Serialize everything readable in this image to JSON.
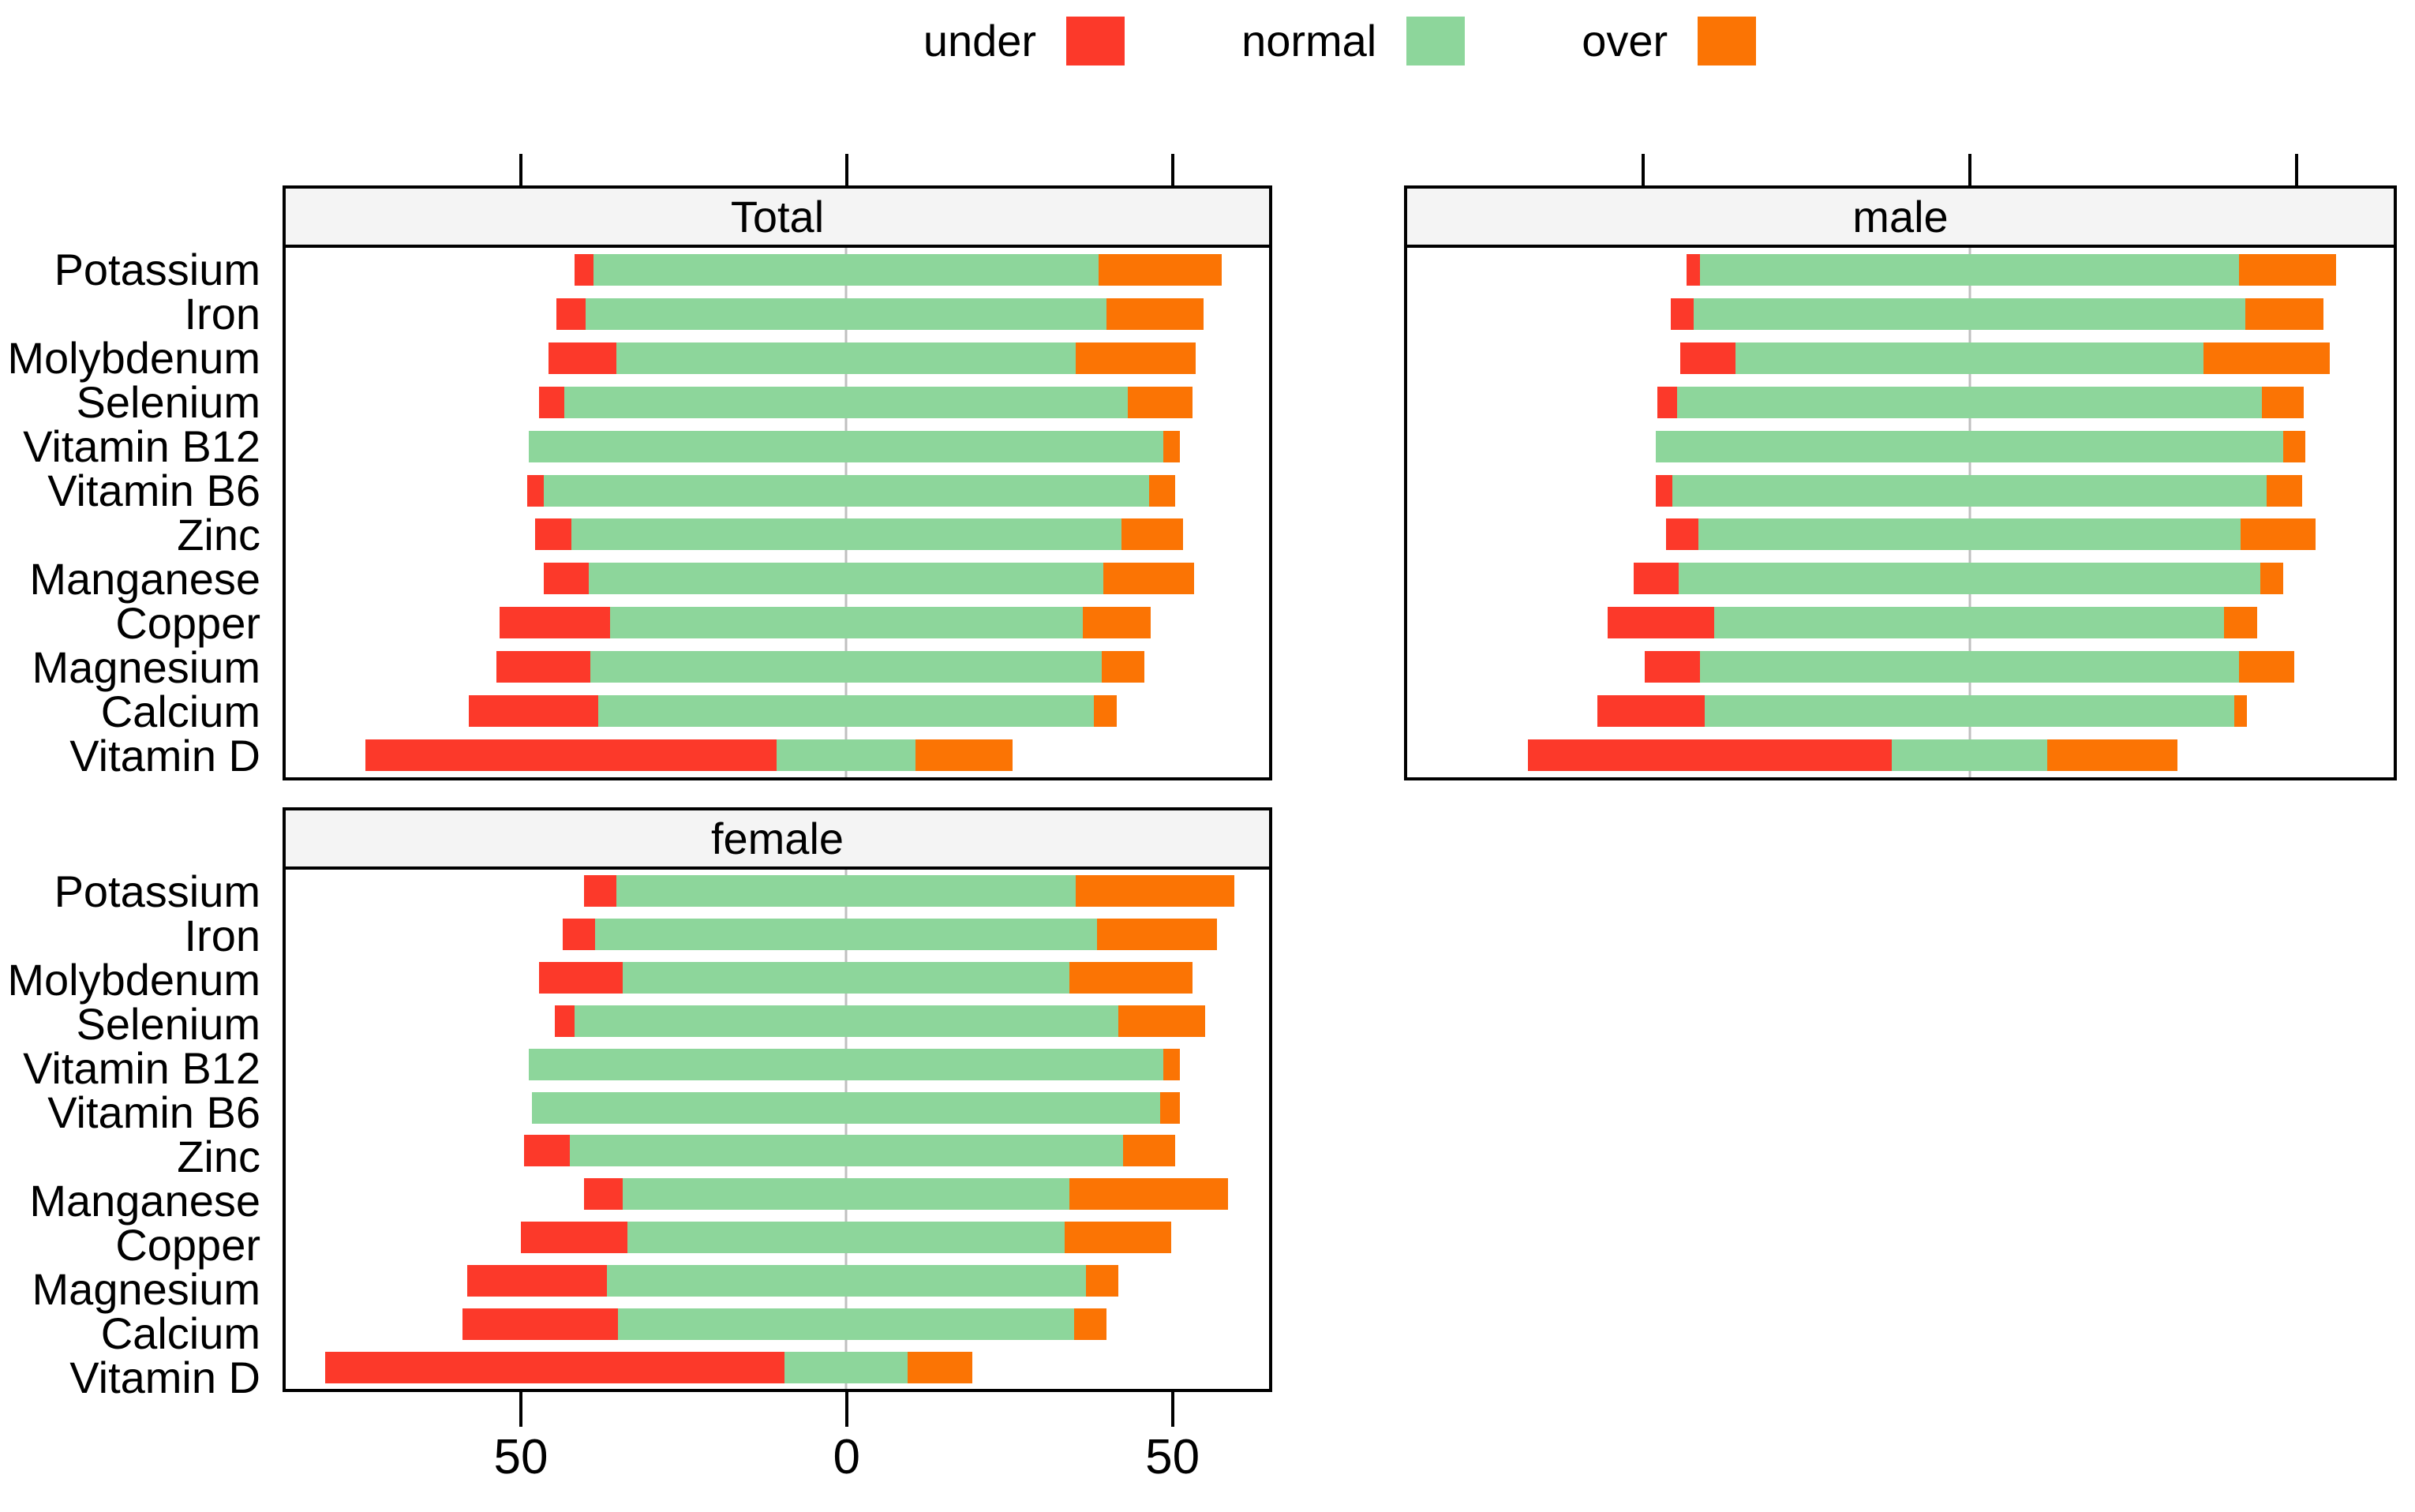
{
  "colors": {
    "under": "#fc392a",
    "normal": "#8dd69b",
    "over": "#fb7404",
    "gridline": "#bfbfbf",
    "panel_header_bg": "#f4f4f4",
    "panel_border": "#000000"
  },
  "legend": {
    "items": [
      {
        "label": "under",
        "color": "#fc392a"
      },
      {
        "label": "normal",
        "color": "#8dd69b"
      },
      {
        "label": "over",
        "color": "#fb7404"
      }
    ]
  },
  "chart_data": {
    "type": "bar",
    "subtype": "diverging-stacked-likert",
    "orientation": "horizontal",
    "unit": "percent",
    "note": "normal category is split evenly around 0; left extent = under + normal/2, right extent = normal/2 + over",
    "categories": [
      "Potassium",
      "Iron",
      "Molybdenum",
      "Selenium",
      "Vitamin B12",
      "Vitamin B6",
      "Zinc",
      "Manganese",
      "Copper",
      "Magnesium",
      "Calcium",
      "Vitamin D"
    ],
    "segments": [
      "under",
      "normal",
      "over"
    ],
    "x_axis": {
      "tick_values": [
        -50,
        0,
        50
      ],
      "tick_labels": [
        "50",
        "0",
        "50"
      ],
      "range": [
        -86.5,
        65.3
      ],
      "grid": "center-line-only"
    },
    "legend_position": "top",
    "panels": [
      {
        "title": "Total",
        "series": [
          {
            "name": "under",
            "values": [
              3,
              4.5,
              10.5,
              4,
              0,
              2.5,
              5.5,
              7,
              17,
              14.5,
              20,
              63.5
            ]
          },
          {
            "name": "normal",
            "values": [
              78,
              80.5,
              71,
              87,
              98,
              93.5,
              85,
              79.5,
              73,
              79,
              76.5,
              21.5
            ]
          },
          {
            "name": "over",
            "values": [
              19,
              15,
              18.5,
              10,
              2.5,
              4,
              9.5,
              14,
              10.5,
              6.5,
              3.5,
              15
            ]
          }
        ]
      },
      {
        "title": "male",
        "series": [
          {
            "name": "under",
            "values": [
              2,
              3.5,
              8.5,
              3,
              0,
              2.5,
              5,
              7,
              16.5,
              8.5,
              16.5,
              56
            ]
          },
          {
            "name": "normal",
            "values": [
              83,
              85,
              72,
              90,
              96.5,
              91.5,
              83.5,
              89.5,
              78.5,
              83,
              81.5,
              24
            ]
          },
          {
            "name": "over",
            "values": [
              15,
              12,
              19.5,
              6.5,
              3.5,
              5.5,
              11.5,
              3.5,
              5,
              8.5,
              2,
              20
            ]
          }
        ]
      },
      {
        "title": "female",
        "series": [
          {
            "name": "under",
            "values": [
              5,
              5,
              13,
              3,
              0,
              0,
              7,
              6,
              16.5,
              21.5,
              24,
              71
            ]
          },
          {
            "name": "normal",
            "values": [
              71,
              77.5,
              69,
              84,
              98,
              97,
              85.5,
              69,
              67.5,
              74,
              70.5,
              19
            ]
          },
          {
            "name": "over",
            "values": [
              24.5,
              18.5,
              19,
              13.5,
              2.5,
              3,
              8,
              24.5,
              16.5,
              5,
              5,
              10
            ]
          }
        ]
      }
    ]
  }
}
